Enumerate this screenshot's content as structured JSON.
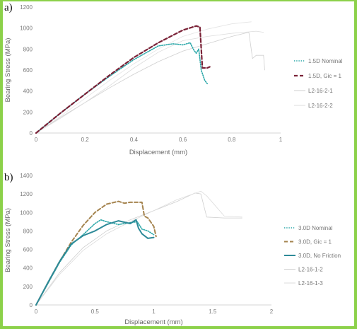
{
  "chart_data": [
    {
      "type": "line",
      "panel_label": "a)",
      "xlabel": "Displacement (mm)",
      "ylabel": "Bearing Stress (MPa)",
      "xlim": [
        0,
        1
      ],
      "ylim": [
        0,
        1200
      ],
      "xticks": [
        "0",
        "0.2",
        "0.4",
        "0.6",
        "0.8",
        "1"
      ],
      "yticks": [
        "0",
        "200",
        "400",
        "600",
        "800",
        "1000",
        "1200"
      ],
      "grid": false,
      "legend": "right",
      "series": [
        {
          "name": "1.5D Nominal",
          "style": "dotted",
          "color": "#2aa7a8",
          "width": 1.6,
          "x": [
            0,
            0.1,
            0.2,
            0.3,
            0.4,
            0.5,
            0.56,
            0.6,
            0.63,
            0.645,
            0.655,
            0.665,
            0.675,
            0.69,
            0.7
          ],
          "y": [
            0,
            190,
            370,
            540,
            700,
            830,
            850,
            840,
            860,
            790,
            760,
            800,
            600,
            500,
            470
          ]
        },
        {
          "name": "1.5D, Gic = 1",
          "style": "dashed",
          "color": "#7a2237",
          "width": 2.2,
          "x": [
            0,
            0.1,
            0.2,
            0.3,
            0.4,
            0.5,
            0.6,
            0.655,
            0.67,
            0.68,
            0.7,
            0.71
          ],
          "y": [
            0,
            190,
            370,
            550,
            720,
            860,
            980,
            1020,
            1010,
            620,
            620,
            630
          ]
        },
        {
          "name": "L2-16-2-1",
          "style": "solid",
          "color": "#cfcfcf",
          "width": 0.8,
          "x": [
            0,
            0.1,
            0.2,
            0.3,
            0.4,
            0.5,
            0.6,
            0.7,
            0.8,
            0.87,
            0.885,
            0.9,
            0.93,
            0.935
          ],
          "y": [
            0,
            150,
            290,
            430,
            560,
            680,
            780,
            850,
            920,
            960,
            710,
            740,
            740,
            600
          ]
        },
        {
          "name": "L2-16-2-2",
          "style": "solid",
          "color": "#dcdcdc",
          "width": 0.8,
          "x": [
            0,
            0.1,
            0.2,
            0.3,
            0.4,
            0.5,
            0.6,
            0.7,
            0.8,
            0.9,
            0.93
          ],
          "y": [
            0,
            140,
            290,
            450,
            620,
            770,
            880,
            920,
            950,
            970,
            960
          ]
        },
        {
          "name": "",
          "style": "solid",
          "color": "#e4e4e4",
          "width": 0.8,
          "x": [
            0,
            0.1,
            0.2,
            0.3,
            0.4,
            0.5,
            0.6,
            0.7,
            0.8,
            0.88
          ],
          "y": [
            0,
            160,
            330,
            500,
            660,
            800,
            920,
            990,
            1040,
            1060
          ]
        }
      ]
    },
    {
      "type": "line",
      "panel_label": "b)",
      "xlabel": "Displacement (mm)",
      "ylabel": "Bearing Stress (MPa)",
      "xlim": [
        0,
        2
      ],
      "ylim": [
        0,
        1400
      ],
      "xticks": [
        "0",
        "0.5",
        "1",
        "1.5",
        "2"
      ],
      "yticks": [
        "0",
        "200",
        "400",
        "600",
        "800",
        "1000",
        "1200",
        "1400"
      ],
      "grid": false,
      "legend": "right",
      "series": [
        {
          "name": "3.0D Nominal",
          "style": "dotted",
          "color": "#2aa7a8",
          "width": 1.6,
          "x": [
            0,
            0.1,
            0.2,
            0.3,
            0.4,
            0.5,
            0.55,
            0.6,
            0.7,
            0.8,
            0.86,
            0.9,
            0.95,
            1.0
          ],
          "y": [
            0,
            230,
            460,
            650,
            760,
            880,
            920,
            900,
            870,
            890,
            900,
            820,
            800,
            760
          ]
        },
        {
          "name": "3.0D, Gic = 1",
          "style": "dashed",
          "color": "#a5844f",
          "width": 2.0,
          "x": [
            0,
            0.1,
            0.2,
            0.3,
            0.4,
            0.5,
            0.6,
            0.7,
            0.75,
            0.8,
            0.9,
            0.92,
            0.95,
            1.0,
            1.02
          ],
          "y": [
            0,
            240,
            470,
            680,
            860,
            1000,
            1090,
            1120,
            1100,
            1110,
            1110,
            960,
            940,
            850,
            740
          ]
        },
        {
          "name": "3.0D, No Friction",
          "style": "solid",
          "color": "#2e8a98",
          "width": 2.0,
          "x": [
            0,
            0.1,
            0.2,
            0.3,
            0.4,
            0.5,
            0.6,
            0.7,
            0.8,
            0.85,
            0.87,
            0.9,
            0.95,
            1.0
          ],
          "y": [
            0,
            240,
            470,
            660,
            750,
            800,
            870,
            910,
            880,
            920,
            830,
            770,
            720,
            730
          ]
        },
        {
          "name": "L2-16-1-2",
          "style": "solid",
          "color": "#cfcfcf",
          "width": 0.8,
          "x": [
            0,
            0.2,
            0.4,
            0.6,
            0.8,
            1.0,
            1.2,
            1.35,
            1.4,
            1.45,
            1.6,
            1.75
          ],
          "y": [
            0,
            350,
            620,
            800,
            920,
            1020,
            1120,
            1210,
            1200,
            950,
            940,
            940
          ]
        },
        {
          "name": "L2-16-1-3",
          "style": "solid",
          "color": "#dcdcdc",
          "width": 0.8,
          "x": [
            0,
            0.2,
            0.4,
            0.6,
            0.8,
            1.0,
            1.2,
            1.4,
            1.45,
            1.6,
            1.75
          ],
          "y": [
            0,
            330,
            590,
            770,
            900,
            1020,
            1140,
            1230,
            1180,
            960,
            950
          ]
        }
      ]
    }
  ]
}
